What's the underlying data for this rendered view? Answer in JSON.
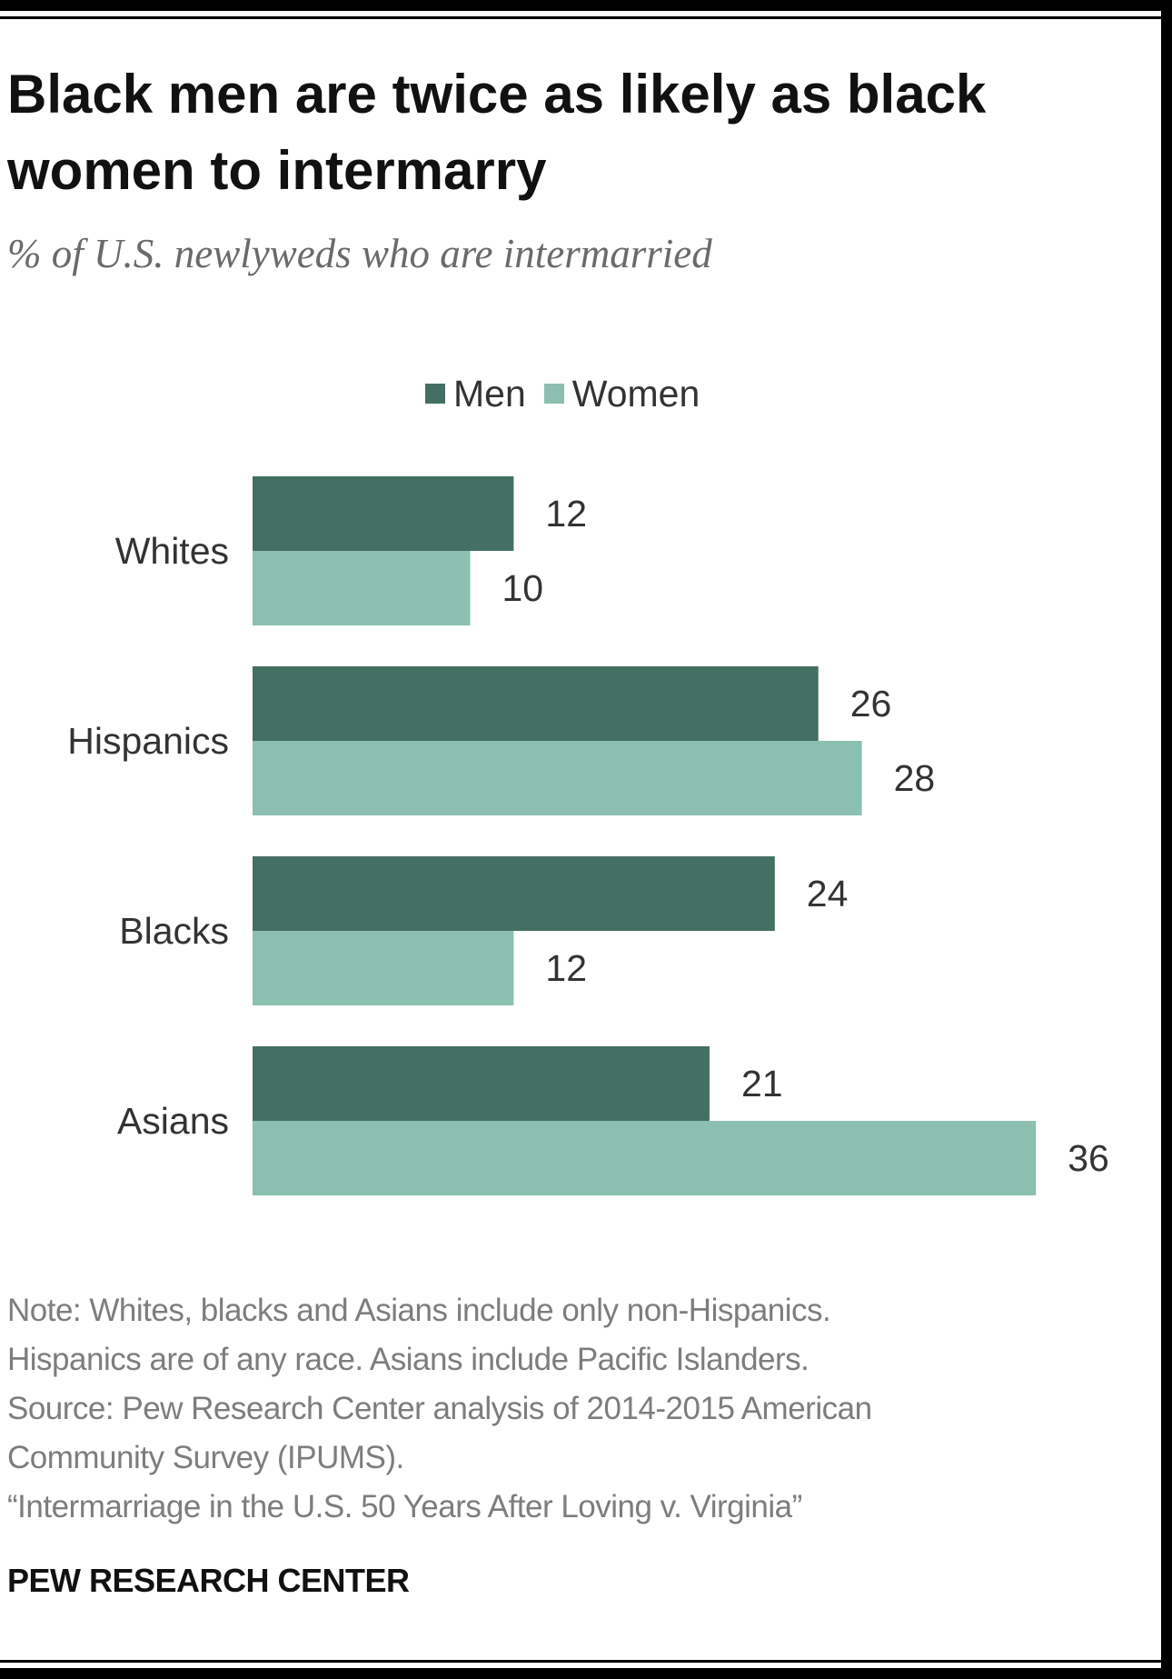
{
  "title_lines": [
    "Black men are twice as likely as black",
    "women to intermarry"
  ],
  "subtitle": "% of U.S. newlyweds who are intermarried",
  "legend": [
    {
      "label": "Men",
      "color": "#446f63"
    },
    {
      "label": "Women",
      "color": "#8bbfb0"
    }
  ],
  "chart_data": {
    "type": "bar",
    "orientation": "horizontal",
    "categories": [
      "Whites",
      "Hispanics",
      "Blacks",
      "Asians"
    ],
    "series": [
      {
        "name": "Men",
        "color": "#446f63",
        "values": [
          12,
          26,
          24,
          21
        ]
      },
      {
        "name": "Women",
        "color": "#8bbfb0",
        "values": [
          10,
          28,
          12,
          36
        ]
      }
    ],
    "title": "Black men are twice as likely as black women to intermarry",
    "subtitle": "% of U.S. newlyweds who are intermarried",
    "xlim": [
      0,
      36
    ],
    "grid": false,
    "legend_position": "top",
    "data_labels": true
  },
  "notes": [
    "Note: Whites, blacks and Asians include only non-Hispanics.",
    "Hispanics are of any race. Asians include Pacific Islanders.",
    "Source: Pew Research Center analysis of 2014-2015 American",
    "Community Survey (IPUMS).",
    "“Intermarriage in the U.S. 50 Years After Loving v. Virginia”"
  ],
  "organization": "PEW RESEARCH CENTER"
}
